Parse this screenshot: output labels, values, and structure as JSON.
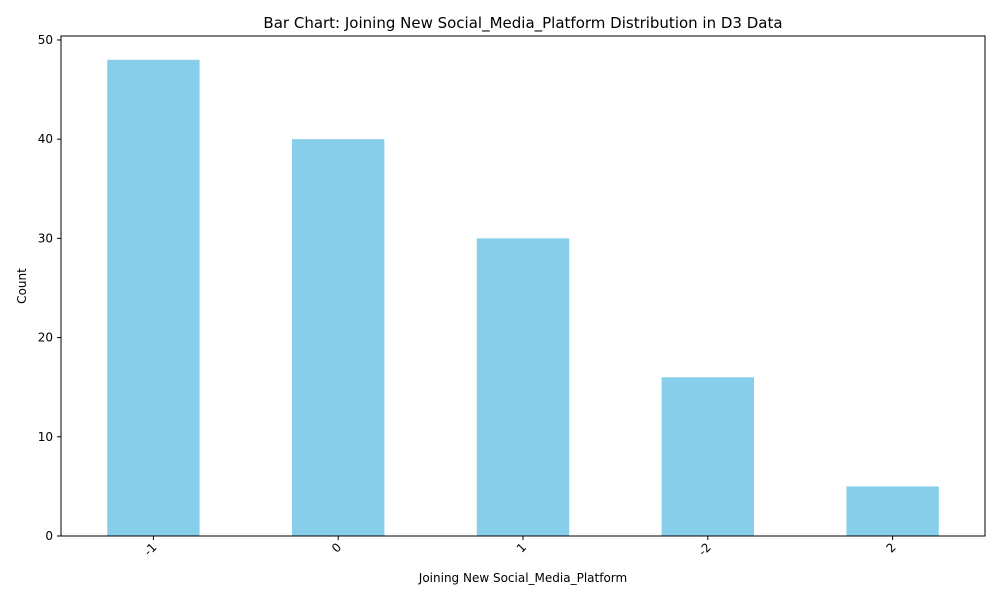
{
  "chart_data": {
    "type": "bar",
    "title": "Bar Chart: Joining New Social_Media_Platform Distribution in D3 Data",
    "xlabel": "Joining New Social_Media_Platform",
    "ylabel": "Count",
    "categories": [
      "-1",
      "0",
      "1",
      "-2",
      "2"
    ],
    "values": [
      48,
      40,
      30,
      16,
      5
    ],
    "ylim": [
      0,
      50.4
    ],
    "yticks": [
      0,
      10,
      20,
      30,
      40,
      50
    ],
    "bar_color": "#87CEEB",
    "grid": false,
    "legend": "none"
  }
}
